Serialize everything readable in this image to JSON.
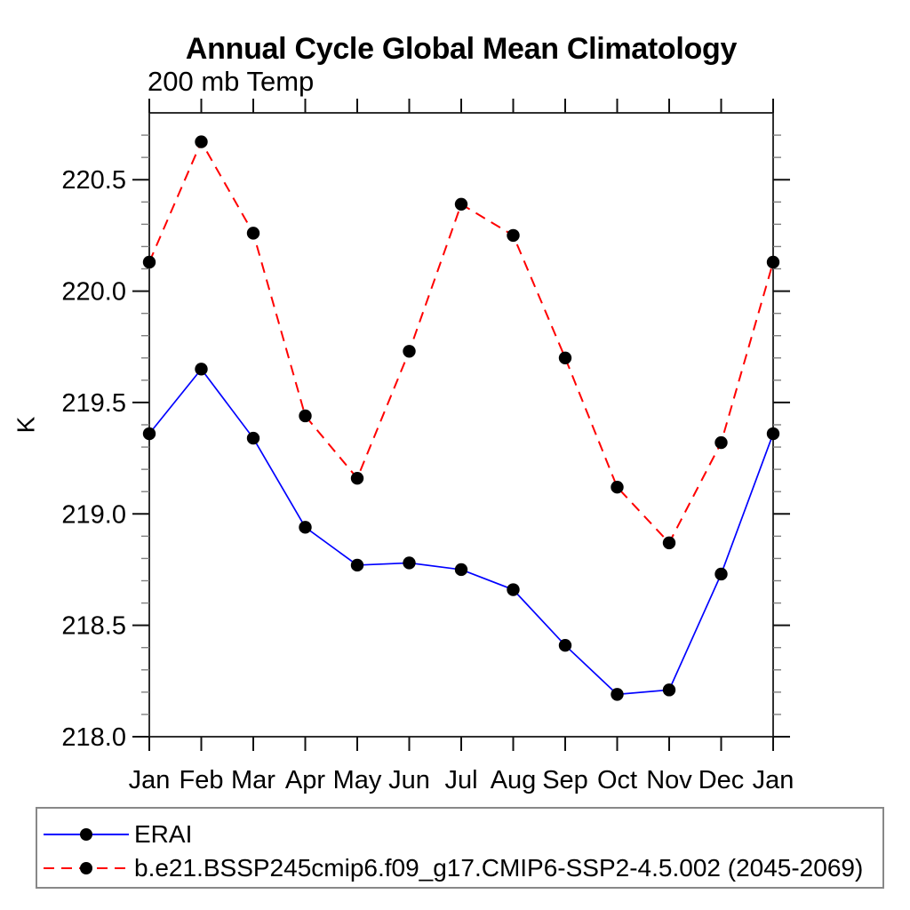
{
  "header": {
    "title": "Annual Cycle Global Mean Climatology",
    "subtitle": "200 mb Temp"
  },
  "chart_data": {
    "type": "line",
    "title": "Annual Cycle Global Mean Climatology",
    "subtitle": "200 mb Temp",
    "xlabel": "",
    "ylabel": "K",
    "categories": [
      "Jan",
      "Feb",
      "Mar",
      "Apr",
      "May",
      "Jun",
      "Jul",
      "Aug",
      "Sep",
      "Oct",
      "Nov",
      "Dec",
      "Jan"
    ],
    "ylim": [
      218.0,
      220.8
    ],
    "ytick_major": [
      218.0,
      218.5,
      219.0,
      219.5,
      220.0,
      220.5
    ],
    "ytick_major_labels": [
      "218.0",
      "218.5",
      "219.0",
      "219.5",
      "220.0",
      "220.5"
    ],
    "ytick_minor_step": 0.1,
    "grid": false,
    "legend_position": "bottom-outside",
    "series": [
      {
        "name": "ERAI",
        "color": "#0000ff",
        "line_style": "solid",
        "marker": "filled-circle",
        "marker_color": "#000000",
        "values": [
          219.36,
          219.65,
          219.34,
          218.94,
          218.77,
          218.78,
          218.75,
          218.66,
          218.41,
          218.19,
          218.21,
          218.73,
          219.36
        ]
      },
      {
        "name": "b.e21.BSSP245cmip6.f09_g17.CMIP6-SSP2-4.5.002 (2045-2069)",
        "color": "#ff0000",
        "line_style": "dashed",
        "marker": "filled-circle",
        "marker_color": "#000000",
        "values": [
          220.13,
          220.67,
          220.26,
          219.44,
          219.16,
          219.73,
          220.39,
          220.25,
          219.7,
          219.12,
          218.87,
          219.32,
          220.13
        ]
      }
    ],
    "axis_color": "#1a1a1a",
    "major_tick_color": "#111111",
    "minor_tick_color": "#808080"
  }
}
